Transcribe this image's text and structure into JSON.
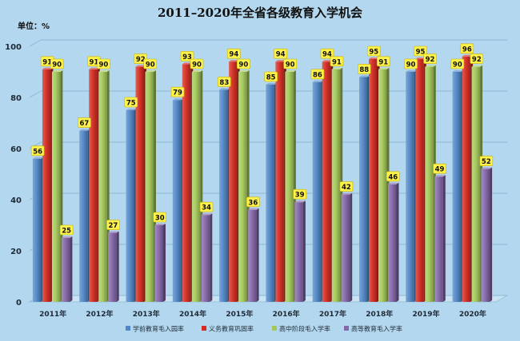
{
  "chart_data": {
    "type": "bar",
    "title": "2011–2020年全省各级教育入学机会",
    "ylabel": "单位：%",
    "xlabel": "",
    "categories": [
      "2011年",
      "2012年",
      "2013年",
      "2014年",
      "2015年",
      "2016年",
      "2017年",
      "2018年",
      "2019年",
      "2020年"
    ],
    "series": [
      {
        "name": "学前教育毛入园率",
        "color": "#4f86c6",
        "values": [
          56,
          67,
          75,
          79,
          83,
          85,
          86,
          88,
          90,
          90
        ]
      },
      {
        "name": "义务教育巩固率",
        "color": "#d42a20",
        "values": [
          91,
          91,
          92,
          93,
          94,
          94,
          94,
          95,
          95,
          96
        ]
      },
      {
        "name": "高中阶段毛入学率",
        "color": "#a4c95a",
        "values": [
          90,
          90,
          90,
          90,
          90,
          90,
          91,
          91,
          92,
          92
        ]
      },
      {
        "name": "高等教育毛入学率",
        "color": "#8466a9",
        "values": [
          25,
          27,
          30,
          34,
          36,
          39,
          42,
          46,
          49,
          52
        ]
      }
    ],
    "ylim": [
      0,
      100
    ],
    "yticks": [
      0,
      20,
      40,
      60,
      80,
      100
    ],
    "grid": true,
    "legend": "bottom"
  }
}
